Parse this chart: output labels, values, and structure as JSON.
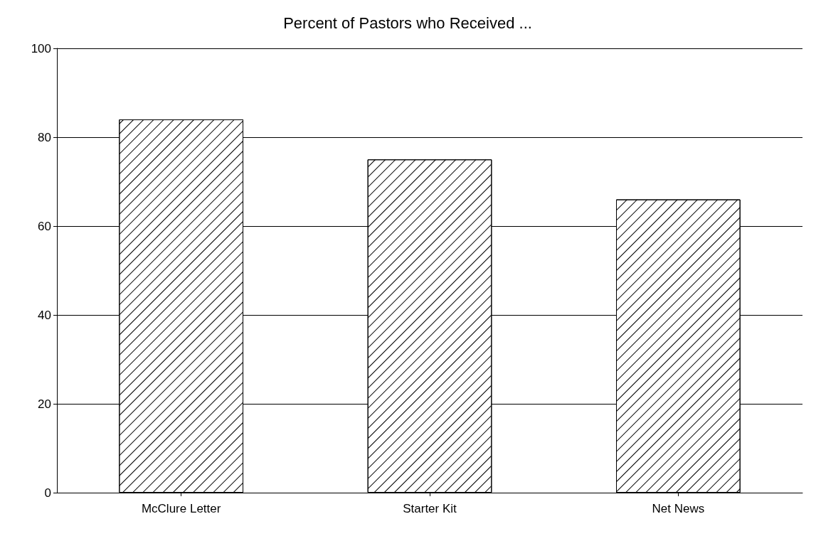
{
  "chart_data": {
    "type": "bar",
    "title": "Percent of Pastors who Received ...",
    "categories": [
      "McClure Letter",
      "Starter Kit",
      "Net News"
    ],
    "values": [
      84,
      75,
      66
    ],
    "color": "#ffffff",
    "ylim": [
      0,
      100
    ],
    "yticks": [
      0,
      20,
      40,
      60,
      80,
      100
    ],
    "grid": "y"
  }
}
